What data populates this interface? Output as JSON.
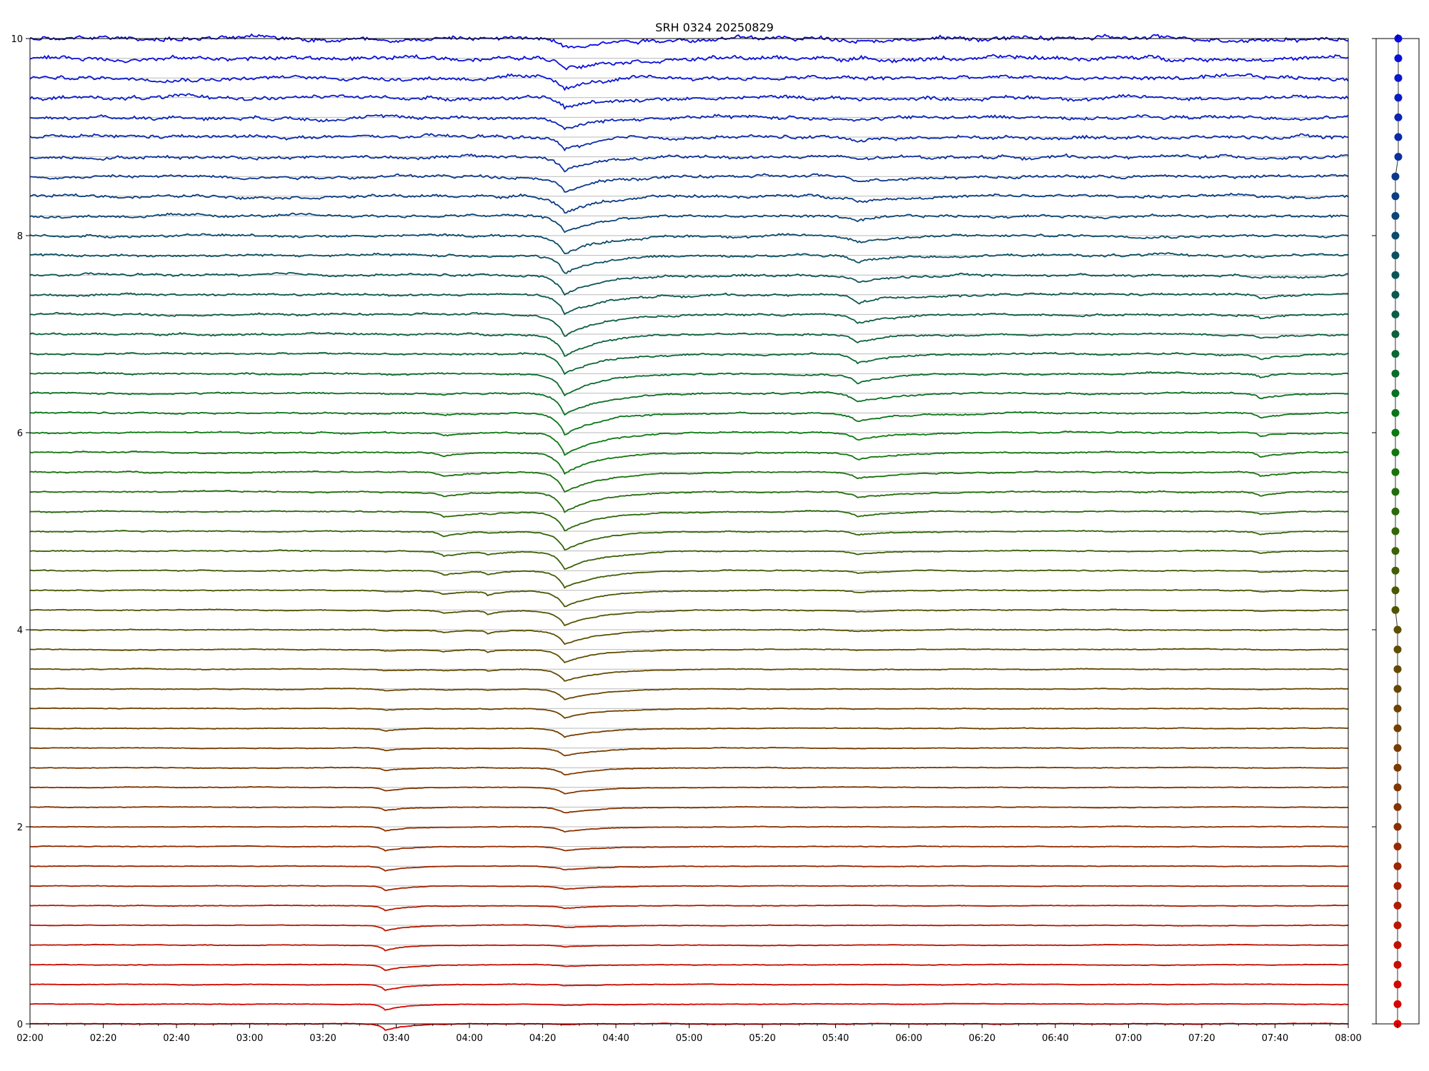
{
  "chart_data": {
    "type": "line",
    "title": "SRH 0324 20250829",
    "xlabel": "",
    "ylabel": "",
    "xlim": [
      "02:00",
      "08:00"
    ],
    "ylim": [
      0,
      10
    ],
    "grid": "horizontal baseline under each trace",
    "legend": "none",
    "x_tick_labels": [
      "02:00",
      "02:20",
      "02:40",
      "03:00",
      "03:20",
      "03:40",
      "04:00",
      "04:20",
      "04:40",
      "05:00",
      "05:20",
      "05:40",
      "06:00",
      "06:20",
      "06:40",
      "07:00",
      "07:20",
      "07:40",
      "08:00"
    ],
    "y_tick_labels": [
      "0",
      "2",
      "4",
      "6",
      "8",
      "10"
    ],
    "y_ticks": [
      0,
      2,
      4,
      6,
      8,
      10
    ],
    "trace_count": 51,
    "trace_spacing": 0.2,
    "color_start": "#e00000",
    "color_mid_1": "#8a3000",
    "color_mid_2": "#5a5000",
    "color_mid_3": "#0a7a10",
    "color_mid_4": "#0b4a6a",
    "color_end": "#0a0ae6",
    "events": [
      {
        "time": "03:37",
        "depth": 0.06,
        "width_min": 1.5,
        "center_offset": 0.0,
        "span": 0.32
      },
      {
        "time": "03:53",
        "depth": 0.05,
        "width_min": 2.0,
        "center_offset": 0.5,
        "span": 0.12
      },
      {
        "time": "04:05",
        "depth": 0.04,
        "width_min": 1.0,
        "center_offset": 0.43,
        "span": 0.08
      },
      {
        "time": "04:26",
        "depth": 0.22,
        "width_min": 2.5,
        "center_offset": 0.64,
        "span": 0.36
      },
      {
        "time": "05:46",
        "depth": 0.09,
        "width_min": 2.5,
        "center_offset": 0.68,
        "span": 0.2
      },
      {
        "time": "07:36",
        "depth": 0.05,
        "width_min": 1.5,
        "center_offset": 0.62,
        "span": 0.16
      }
    ],
    "side_panel": {
      "markers": "one dot per trace at its baseline",
      "count": 51
    }
  }
}
